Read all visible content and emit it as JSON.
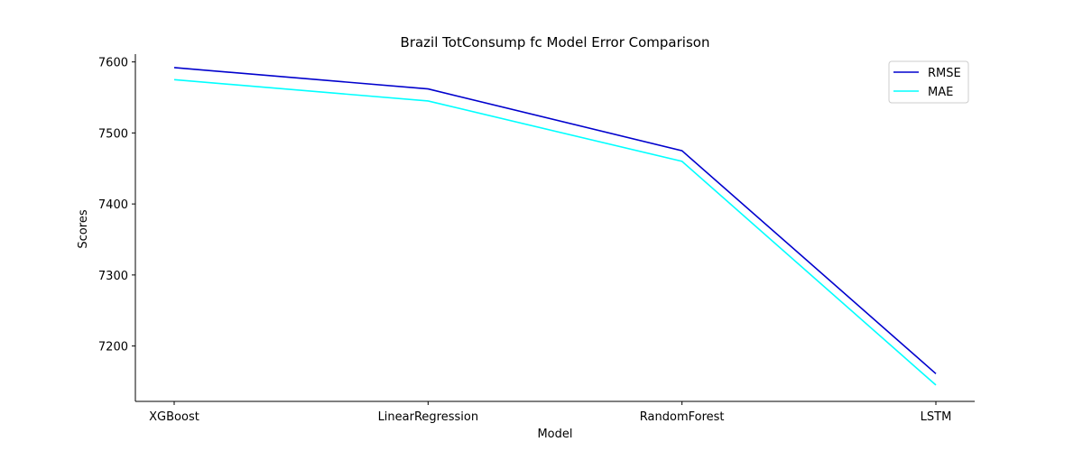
{
  "chart_data": {
    "type": "line",
    "title": "Brazil TotConsump fc Model Error Comparison",
    "xlabel": "Model",
    "ylabel": "Scores",
    "categories": [
      "XGBoost",
      "LinearRegression",
      "RandomForest",
      "LSTM"
    ],
    "series": [
      {
        "name": "RMSE",
        "values": [
          7592,
          7562,
          7475,
          7161
        ],
        "color": "#0000cd"
      },
      {
        "name": "MAE",
        "values": [
          7575,
          7545,
          7460,
          7145
        ],
        "color": "#00ffff"
      }
    ],
    "ylim": [
      7122,
      7611
    ],
    "yticks": [
      7200,
      7300,
      7400,
      7500,
      7600
    ],
    "grid": false,
    "legend_position": "top-right"
  }
}
